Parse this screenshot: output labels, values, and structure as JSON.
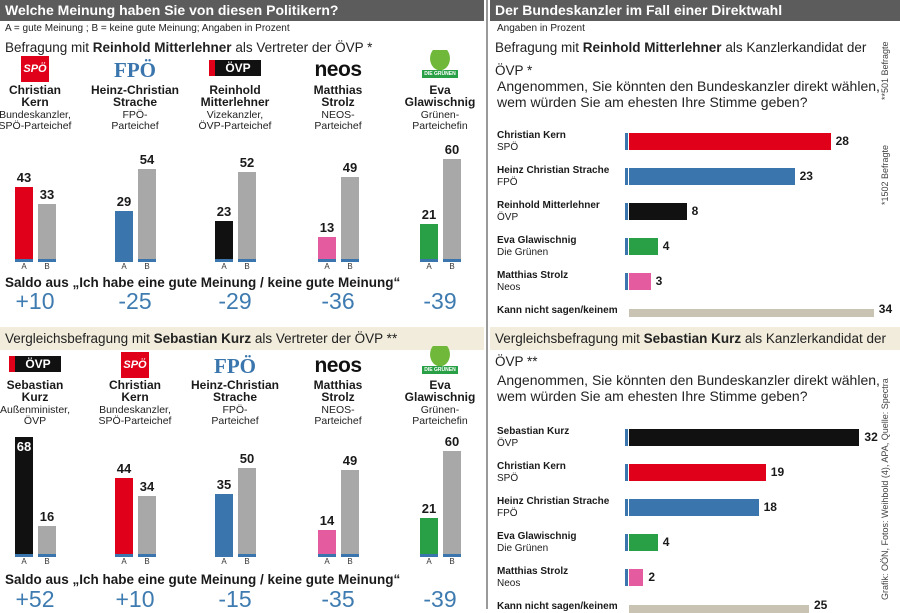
{
  "colors": {
    "spoe": "#e0001a",
    "fpoe": "#3a76ad",
    "oevp": "#111111",
    "neos": "#e45c9f",
    "gruene": "#2aa046",
    "grey": "#a8a8a8",
    "cannot": "#c9c3b4",
    "saldo": "#3e7bb0"
  },
  "left": {
    "title": "Welche Meinung haben Sie von diesen Politikern?",
    "legend": "A = gute Meinung ;  B = keine gute Meinung;  Angaben in Prozent",
    "survey1": {
      "intro_pre": "Befragung mit ",
      "intro_name": "Reinhold Mitterlehner",
      "intro_post": " als Vertreter der ÖVP *",
      "saldo_label": "Saldo aus „Ich habe eine gute Meinung / keine gute Meinung“",
      "politicians": [
        {
          "logo": "SPÖ",
          "name": "Christian\nKern",
          "role": "Bundeskanzler,\nSPÖ-Parteichef",
          "A": 43,
          "B": 33,
          "saldo": "+10",
          "color": "spoe"
        },
        {
          "logo": "FPÖ",
          "name": "Heinz-Christian\nStrache",
          "role": "FPÖ-\nParteichef",
          "A": 29,
          "B": 54,
          "saldo": "-25",
          "color": "fpoe"
        },
        {
          "logo": "ÖVP",
          "name": "Reinhold\nMitterlehner",
          "role": "Vizekanzler,\nÖVP-Parteichef",
          "A": 23,
          "B": 52,
          "saldo": "-29",
          "color": "oevp"
        },
        {
          "logo": "neos",
          "name": "Matthias\nStrolz",
          "role": "NEOS-\nParteichef",
          "A": 13,
          "B": 49,
          "saldo": "-36",
          "color": "neos"
        },
        {
          "logo": "DIE GRÜNEN",
          "name": "Eva\nGlawischnig",
          "role": "Grünen-\nParteichefin",
          "A": 21,
          "B": 60,
          "saldo": "-39",
          "color": "gruene"
        }
      ]
    },
    "survey2": {
      "intro_pre": "Vergleichsbefragung mit ",
      "intro_name": "Sebastian Kurz",
      "intro_post": " als Vertreter der ÖVP **",
      "saldo_label": "Saldo aus „Ich habe eine gute Meinung / keine gute Meinung“",
      "politicians": [
        {
          "logo": "ÖVP",
          "name": "Sebastian\nKurz",
          "role": "Außenminister,\nÖVP",
          "A": 68,
          "B": 16,
          "saldo": "+52",
          "color": "oevp"
        },
        {
          "logo": "SPÖ",
          "name": "Christian\nKern",
          "role": "Bundeskanzler,\nSPÖ-Parteichef",
          "A": 44,
          "B": 34,
          "saldo": "+10",
          "color": "spoe"
        },
        {
          "logo": "FPÖ",
          "name": "Heinz-Christian\nStrache",
          "role": "FPÖ-\nParteichef",
          "A": 35,
          "B": 50,
          "saldo": "-15",
          "color": "fpoe"
        },
        {
          "logo": "neos",
          "name": "Matthias\nStrolz",
          "role": "NEOS-\nParteichef",
          "A": 14,
          "B": 49,
          "saldo": "-35",
          "color": "neos"
        },
        {
          "logo": "DIE GRÜNEN",
          "name": "Eva\nGlawischnig",
          "role": "Grünen-\nParteichefin",
          "A": 21,
          "B": 60,
          "saldo": "-39",
          "color": "gruene"
        }
      ]
    },
    "ab_labels": [
      "A",
      "B"
    ]
  },
  "right": {
    "title": "Der Bundeskanzler im Fall einer Direktwahl",
    "subtitle": "Angaben in Prozent",
    "question": "Angenommen, Sie könnten den Bundeskanzler direkt wählen,\nwem würden Sie am ehesten Ihre Stimme geben?",
    "survey1": {
      "intro_pre": "Befragung mit ",
      "intro_name": "Reinhold Mitterlehner",
      "intro_post": " als Kanzlerkandidat der ÖVP *",
      "rows": [
        {
          "name": "Christian Kern",
          "party": "SPÖ",
          "value": 28,
          "color": "spoe"
        },
        {
          "name": "Heinz Christian Strache",
          "party": "FPÖ",
          "value": 23,
          "color": "fpoe"
        },
        {
          "name": "Reinhold Mitterlehner",
          "party": "ÖVP",
          "value": 8,
          "color": "oevp"
        },
        {
          "name": "Eva Glawischnig",
          "party": "Die Grünen",
          "value": 4,
          "color": "gruene"
        },
        {
          "name": "Matthias Strolz",
          "party": "Neos",
          "value": 3,
          "color": "neos"
        },
        {
          "name": "Kann nicht sagen/keinem",
          "party": "",
          "value": 34,
          "color": "cannot"
        }
      ]
    },
    "survey2": {
      "intro_pre": "Vergleichsbefragung mit ",
      "intro_name": "Sebastian Kurz",
      "intro_post": " als Kanzlerkandidat der ÖVP **",
      "rows": [
        {
          "name": "Sebastian Kurz",
          "party": "ÖVP",
          "value": 32,
          "color": "oevp"
        },
        {
          "name": "Christian Kern",
          "party": "SPÖ",
          "value": 19,
          "color": "spoe"
        },
        {
          "name": "Heinz Christian Strache",
          "party": "FPÖ",
          "value": 18,
          "color": "fpoe"
        },
        {
          "name": "Eva Glawischnig",
          "party": "Die Grünen",
          "value": 4,
          "color": "gruene"
        },
        {
          "name": "Matthias Strolz",
          "party": "Neos",
          "value": 2,
          "color": "neos"
        },
        {
          "name": "Kann nicht sagen/keinem",
          "party": "",
          "value": 25,
          "color": "cannot"
        }
      ]
    },
    "side_notes": [
      "**501 Befragte",
      "*1502 Befragte",
      "Grafik: OÖN, Fotos: Weihbold (4), APA, Quelle: Spectra"
    ]
  },
  "chart_data": [
    {
      "type": "bar",
      "title": "Welche Meinung haben Sie von diesen Politikern?",
      "subtitle": "Befragung mit Reinhold Mitterlehner als Vertreter der ÖVP *",
      "categories": [
        "Christian Kern",
        "Heinz-Christian Strache",
        "Reinhold Mitterlehner",
        "Matthias Strolz",
        "Eva Glawischnig"
      ],
      "series": [
        {
          "name": "A",
          "values": [
            43,
            29,
            23,
            13,
            21
          ]
        },
        {
          "name": "B",
          "values": [
            33,
            54,
            52,
            49,
            60
          ]
        }
      ]
    },
    {
      "type": "bar",
      "subtitle": "Vergleichsbefragung mit Sebastian Kurz als Vertreter der ÖVP **",
      "categories": [
        "Sebastian Kurz",
        "Christian Kern",
        "Heinz-Christian Strache",
        "Matthias Strolz",
        "Eva Glawischnig"
      ],
      "series": [
        {
          "name": "A",
          "values": [
            68,
            44,
            35,
            14,
            21
          ]
        },
        {
          "name": "B",
          "values": [
            16,
            34,
            50,
            49,
            60
          ]
        }
      ]
    },
    {
      "type": "bar",
      "title": "Der Bundeskanzler im Fall einer Direktwahl",
      "subtitle": "Befragung mit Reinhold Mitterlehner als Kanzlerkandidat der ÖVP *",
      "categories": [
        "Christian Kern",
        "Heinz Christian Strache",
        "Reinhold Mitterlehner",
        "Eva Glawischnig",
        "Matthias Strolz",
        "Kann nicht sagen/keinem"
      ],
      "values": [
        28,
        23,
        8,
        4,
        3,
        34
      ]
    },
    {
      "type": "bar",
      "subtitle": "Vergleichsbefragung mit Sebastian Kurz als Kanzlerkandidat der ÖVP **",
      "categories": [
        "Sebastian Kurz",
        "Christian Kern",
        "Heinz Christian Strache",
        "Eva Glawischnig",
        "Matthias Strolz",
        "Kann nicht sagen/keinem"
      ],
      "values": [
        32,
        19,
        18,
        4,
        2,
        25
      ]
    }
  ]
}
